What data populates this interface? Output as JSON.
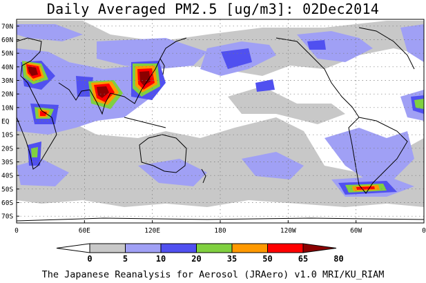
{
  "title": "Daily Averaged PM2.5 [ug/m3]: 02Dec2014",
  "footer": "The Japanese Reanalysis for Aerosol (JRAero) v1.0 MRI/KU_RIAM",
  "map": {
    "projection": "equirectangular, 0E-360E",
    "lon_range": [
      0,
      360
    ],
    "lat_range": [
      -75,
      75
    ],
    "lat_labels": [
      "70N",
      "60N",
      "50N",
      "40N",
      "30N",
      "20N",
      "10N",
      "EQ",
      "10S",
      "20S",
      "30S",
      "40S",
      "50S",
      "60S",
      "70S"
    ],
    "lon_labels": [
      "0",
      "60E",
      "120E",
      "180",
      "120W",
      "60W",
      "0"
    ],
    "gridlines": "dotted"
  },
  "colorbar": {
    "levels": [
      "0",
      "5",
      "10",
      "20",
      "35",
      "50",
      "65",
      "80"
    ],
    "colors": [
      "#ffffff",
      "#c8c8c8",
      "#a0a0f5",
      "#5050f0",
      "#80d040",
      "#ff9900",
      "#ff0000",
      "#8b0000"
    ]
  }
}
